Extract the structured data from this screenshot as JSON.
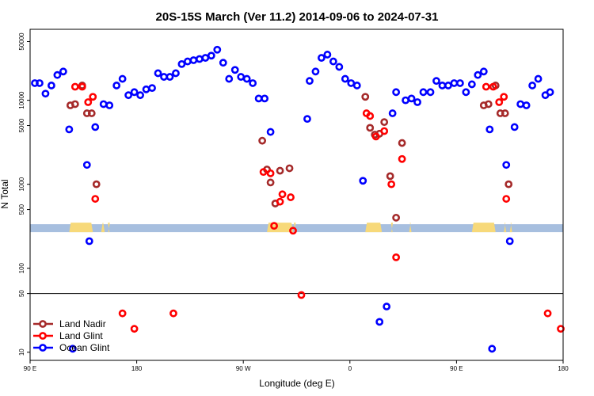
{
  "chart_data": {
    "type": "scatter",
    "title": "20S-15S March (Ver 11.2)   2014-09-06 to 2024-07-31",
    "xlabel": "Longitude (deg E)",
    "ylabel": "N Total",
    "y_scale": "log",
    "xlim": [
      90,
      540
    ],
    "ylim": [
      8,
      70000
    ],
    "x_ticks": [
      {
        "value": 90,
        "label": "90 E"
      },
      {
        "value": 180,
        "label": "180"
      },
      {
        "value": 270,
        "label": "90 W"
      },
      {
        "value": 360,
        "label": "0"
      },
      {
        "value": 450,
        "label": "90 E"
      },
      {
        "value": 540,
        "label": "180"
      }
    ],
    "y_ticks": [
      {
        "value": 10,
        "label": "10"
      },
      {
        "value": 50,
        "label": "50"
      },
      {
        "value": 100,
        "label": "100"
      },
      {
        "value": 500,
        "label": "500"
      },
      {
        "value": 1000,
        "label": "1000"
      },
      {
        "value": 5000,
        "label": "5000"
      },
      {
        "value": 10000,
        "label": "10000"
      },
      {
        "value": 50000,
        "label": "50000"
      }
    ],
    "reference_line_y": 50,
    "land_mask_y": 300,
    "legend_position": "bottom-left",
    "colors": {
      "land_nadir": "#a52a2a",
      "land_glint": "#ff0000",
      "ocean_glint": "#0000ff",
      "ocean_band": "#a7bfdf",
      "land_band": "#f7d97a"
    },
    "land_segments": [
      [
        123,
        143
      ],
      [
        150,
        153
      ],
      [
        156,
        157
      ],
      [
        290,
        312
      ],
      [
        313,
        314
      ],
      [
        373,
        387
      ],
      [
        395,
        396
      ],
      [
        410,
        412
      ],
      [
        463,
        483
      ],
      [
        490,
        492
      ],
      [
        495,
        497
      ]
    ],
    "series": [
      {
        "name": "Land Nadir",
        "color": "#a52a2a",
        "points": [
          [
            124,
            8700
          ],
          [
            128,
            9000
          ],
          [
            134,
            15000
          ],
          [
            138,
            7000
          ],
          [
            142,
            7000
          ],
          [
            146,
            1000
          ],
          [
            286,
            3300
          ],
          [
            290,
            1500
          ],
          [
            293,
            1050
          ],
          [
            297,
            590
          ],
          [
            301,
            1450
          ],
          [
            309,
            1550
          ],
          [
            373,
            11000
          ],
          [
            377,
            4700
          ],
          [
            381,
            3900
          ],
          [
            385,
            4000
          ],
          [
            389,
            5500
          ],
          [
            394,
            1250
          ],
          [
            399,
            400
          ],
          [
            404,
            3100
          ],
          [
            473,
            8700
          ],
          [
            477,
            9000
          ],
          [
            483,
            15000
          ],
          [
            487,
            7000
          ],
          [
            491,
            7000
          ],
          [
            494,
            1000
          ]
        ]
      },
      {
        "name": "Land Glint",
        "color": "#ff0000",
        "points": [
          [
            128,
            14500
          ],
          [
            134,
            14500
          ],
          [
            139,
            9500
          ],
          [
            143,
            11000
          ],
          [
            145,
            670
          ],
          [
            168,
            29
          ],
          [
            178,
            19
          ],
          [
            211,
            29
          ],
          [
            287,
            1400
          ],
          [
            293,
            1350
          ],
          [
            296,
            320
          ],
          [
            301,
            620
          ],
          [
            303,
            760
          ],
          [
            310,
            700
          ],
          [
            312,
            280
          ],
          [
            319,
            48
          ],
          [
            374,
            7000
          ],
          [
            377,
            6500
          ],
          [
            382,
            3700
          ],
          [
            389,
            4300
          ],
          [
            395,
            1000
          ],
          [
            399,
            135
          ],
          [
            404,
            2000
          ],
          [
            475,
            14500
          ],
          [
            481,
            14500
          ],
          [
            486,
            9500
          ],
          [
            490,
            11000
          ],
          [
            492,
            670
          ],
          [
            527,
            29
          ],
          [
            538,
            19
          ]
        ]
      },
      {
        "name": "Ocean Glint",
        "color": "#0000ff",
        "points": [
          [
            94,
            16000
          ],
          [
            98,
            16000
          ],
          [
            103,
            12000
          ],
          [
            108,
            15000
          ],
          [
            113,
            20000
          ],
          [
            118,
            22000
          ],
          [
            123,
            4500
          ],
          [
            126,
            11
          ],
          [
            138,
            1700
          ],
          [
            140,
            210
          ],
          [
            145,
            4800
          ],
          [
            152,
            9000
          ],
          [
            157,
            8700
          ],
          [
            163,
            15000
          ],
          [
            168,
            18000
          ],
          [
            173,
            11500
          ],
          [
            178,
            12500
          ],
          [
            183,
            11500
          ],
          [
            188,
            13500
          ],
          [
            193,
            14000
          ],
          [
            198,
            21000
          ],
          [
            203,
            19000
          ],
          [
            208,
            19000
          ],
          [
            213,
            21000
          ],
          [
            218,
            27000
          ],
          [
            223,
            29000
          ],
          [
            228,
            30000
          ],
          [
            233,
            31000
          ],
          [
            238,
            32000
          ],
          [
            243,
            34000
          ],
          [
            248,
            40000
          ],
          [
            253,
            28000
          ],
          [
            258,
            18000
          ],
          [
            263,
            23000
          ],
          [
            268,
            19000
          ],
          [
            273,
            18000
          ],
          [
            278,
            16000
          ],
          [
            283,
            10500
          ],
          [
            288,
            10500
          ],
          [
            293,
            4200
          ],
          [
            324,
            6000
          ],
          [
            326,
            17000
          ],
          [
            331,
            22000
          ],
          [
            336,
            32000
          ],
          [
            341,
            35000
          ],
          [
            346,
            29000
          ],
          [
            351,
            25000
          ],
          [
            356,
            18000
          ],
          [
            361,
            16000
          ],
          [
            366,
            15000
          ],
          [
            371,
            1100
          ],
          [
            385,
            23
          ],
          [
            391,
            35
          ],
          [
            396,
            7000
          ],
          [
            399,
            12500
          ],
          [
            407,
            10000
          ],
          [
            412,
            10500
          ],
          [
            417,
            9500
          ],
          [
            422,
            12500
          ],
          [
            428,
            12500
          ],
          [
            433,
            17000
          ],
          [
            438,
            15000
          ],
          [
            443,
            15000
          ],
          [
            448,
            16000
          ],
          [
            453,
            16000
          ],
          [
            458,
            12500
          ],
          [
            463,
            15500
          ],
          [
            468,
            20000
          ],
          [
            473,
            22000
          ],
          [
            478,
            4500
          ],
          [
            480,
            11
          ],
          [
            492,
            1700
          ],
          [
            495,
            210
          ],
          [
            499,
            4800
          ],
          [
            504,
            9000
          ],
          [
            509,
            8700
          ],
          [
            514,
            15000
          ],
          [
            519,
            18000
          ],
          [
            525,
            11500
          ],
          [
            529,
            12500
          ]
        ]
      }
    ]
  }
}
